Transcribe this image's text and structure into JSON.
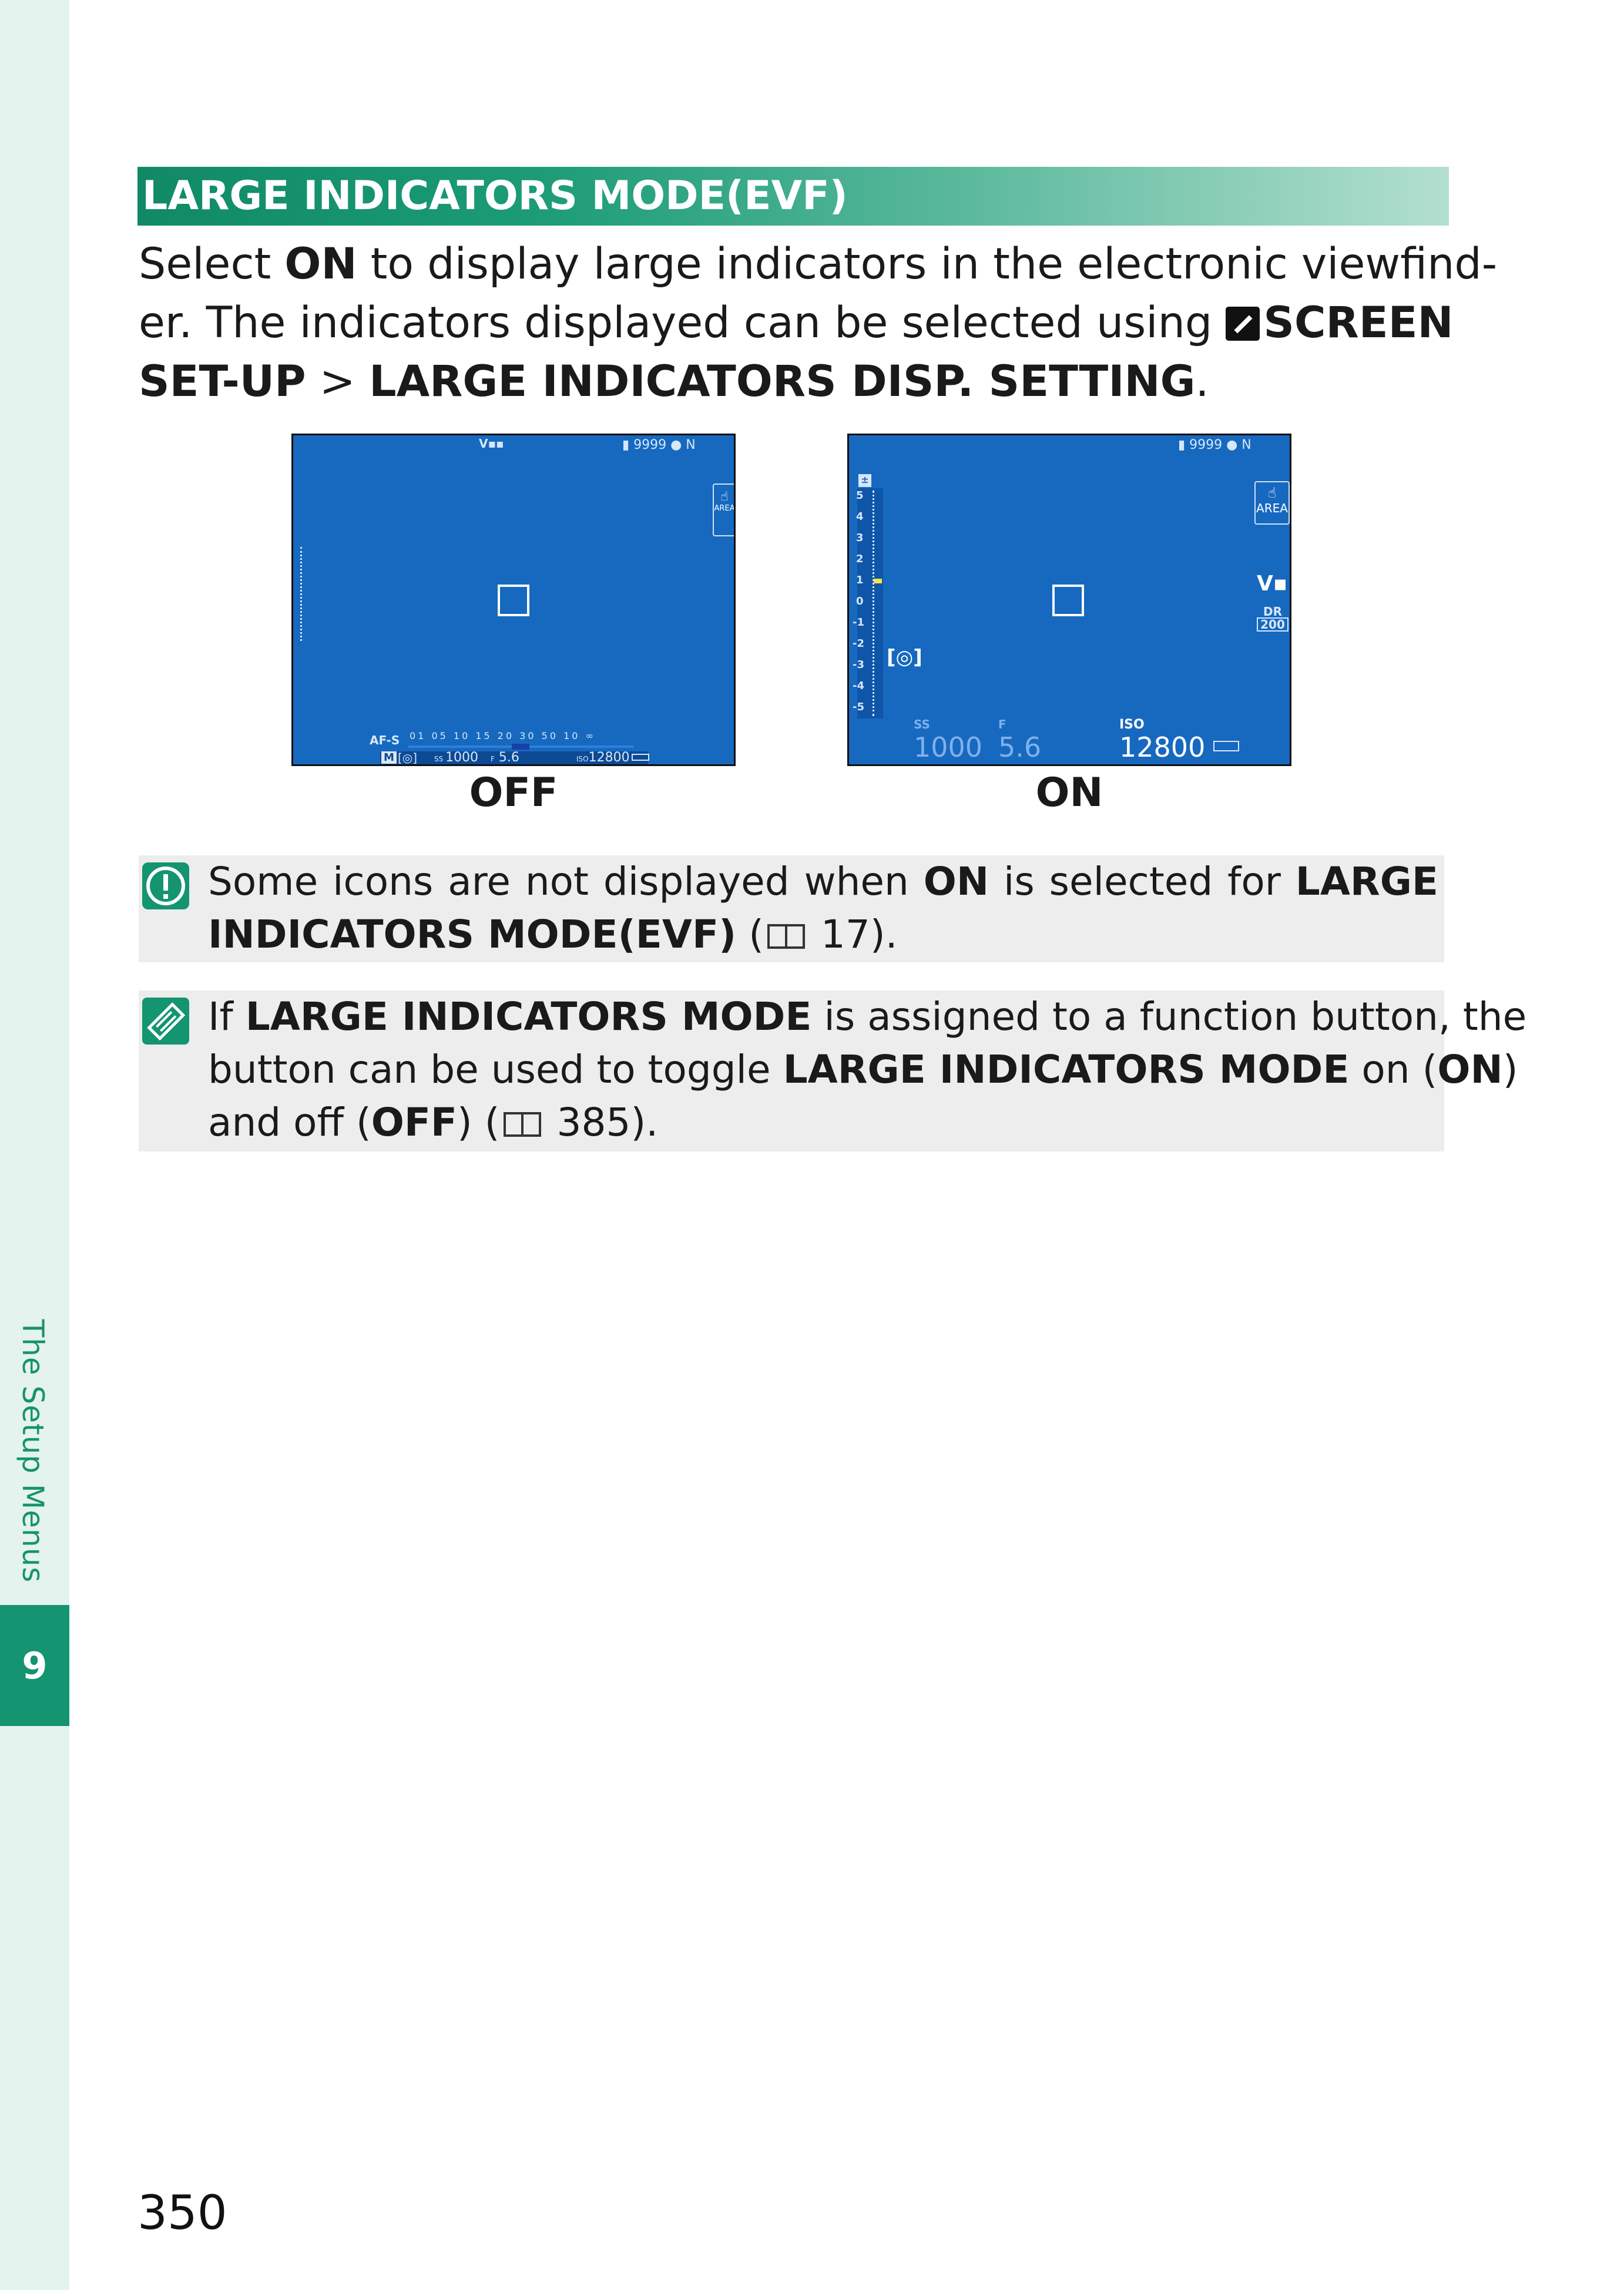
{
  "sidebar": {
    "section_label": "The Setup Menus",
    "chapter_number": "9"
  },
  "heading": "LARGE INDICATORS MODE(EVF)",
  "intro": {
    "l1_a": "Select ",
    "l1_b": "ON",
    "l1_c": " to display large indicators in the electronic viewfind-",
    "l2_a": "er. The indicators displayed can be selected using",
    "l2_b": "SCREEN",
    "l3_a": "SET-UP",
    "l3_b": " > ",
    "l3_c": "LARGE INDICATORS DISP. SETTING",
    "l3_d": "."
  },
  "screens": {
    "off": {
      "caption": "OFF",
      "top_right": "9999",
      "quality": "N",
      "area": "AREA",
      "af_mode": "AF-S",
      "distance_scale": "01 05 10 15 20 30 50 10 ∞",
      "shooting_mode": "M",
      "shutter": "1000",
      "aperture_label": "F",
      "aperture": "5.6",
      "iso_label": "ISO",
      "iso": "12800"
    },
    "on": {
      "caption": "ON",
      "top_right": "9999",
      "quality": "N",
      "area": "AREA",
      "exposure_ticks": [
        "5",
        "4",
        "3",
        "2",
        "1",
        "0",
        "-1",
        "-2",
        "-3",
        "-4",
        "-5"
      ],
      "dr_label": "DR",
      "dr_value": "200",
      "ss_label": "SS",
      "shutter": "1000",
      "aperture_label": "F",
      "aperture": "5.6",
      "iso_label": "ISO",
      "iso": "12800"
    }
  },
  "note_caution": {
    "a": "Some icons are not displayed when ",
    "b": "ON",
    "c": " is selected for ",
    "d": "LARGE",
    "e": "INDICATORS MODE(EVF)",
    "f": " (",
    "g": " 17)."
  },
  "note_tip": {
    "a": "If ",
    "b": "LARGE INDICATORS MODE",
    "c": " is assigned to a function button, the",
    "d": "button can be used to toggle ",
    "e": "LARGE INDICATORS MODE",
    "f": " on (",
    "g": "ON",
    "h": ")",
    "i": "and off (",
    "j": "OFF",
    "k": ") (",
    "l": " 385)."
  },
  "page_number": "350",
  "colors": {
    "accent": "#149471",
    "side_strip": "#e4f3ee",
    "screen_blue": "#1669bf",
    "note_bg": "#ededed"
  }
}
